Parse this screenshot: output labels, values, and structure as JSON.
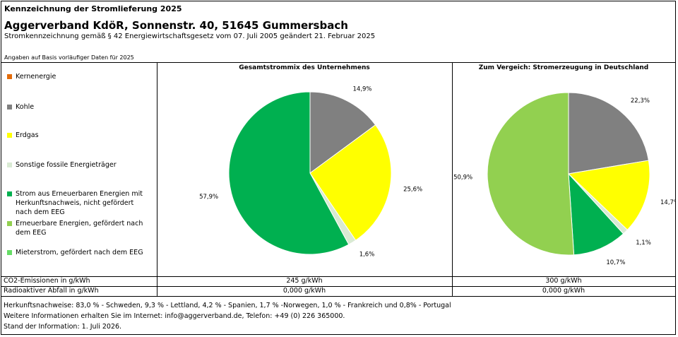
{
  "header": {
    "small_title": "Kennzeichnung der Stromlieferung 2025",
    "company": "Aggerverband KdöR, Sonnenstr. 40, 51645 Gummersbach",
    "subtitle": "Stromkennzeichnung gemäß § 42 Energiewirtschaftsgesetz vom 07. Juli 2005 geändert 21. Februar 2025",
    "note": "Angaben auf Basis vorläufiger Daten für 2025"
  },
  "legend": [
    {
      "label": "Kernenergie",
      "color": "#e46c0a"
    },
    {
      "label": "Kohle",
      "color": "#808080"
    },
    {
      "label": "Erdgas",
      "color": "#ffff00"
    },
    {
      "label": "Sonstige fossile Energieträger",
      "color": "#d9ead3"
    },
    {
      "label": "Strom aus Erneuerbaren Energien mit Herkunftsnachweis, nicht gefördert nach dem EEG",
      "color": "#00b050"
    },
    {
      "label": "Erneuerbare Energien, gefördert nach dem EEG",
      "color": "#92d050"
    },
    {
      "label": "Mieterstrom, gefördert nach dem EEG",
      "color": "#66dd66"
    }
  ],
  "chart_data": [
    {
      "type": "pie",
      "title": "Gesamtstrommix des Unternehmens",
      "slices": [
        {
          "name": "Kohle",
          "value": 14.9,
          "label": "14,9%",
          "color": "#808080"
        },
        {
          "name": "Erdgas",
          "value": 25.6,
          "label": "25,6%",
          "color": "#ffff00"
        },
        {
          "name": "Sonstige fossile Energieträger",
          "value": 1.6,
          "label": "1,6%",
          "color": "#d9ead3"
        },
        {
          "name": "Strom aus Erneuerbaren Energien mit Herkunftsnachweis, nicht gefördert nach dem EEG",
          "value": 57.9,
          "label": "57,9%",
          "color": "#00b050"
        }
      ]
    },
    {
      "type": "pie",
      "title": "Zum Vergeich: Stromerzeugung in Deutschland",
      "slices": [
        {
          "name": "Kohle",
          "value": 22.3,
          "label": "22,3%",
          "color": "#808080"
        },
        {
          "name": "Erdgas",
          "value": 14.7,
          "label": "14,7%",
          "color": "#ffff00"
        },
        {
          "name": "Sonstige fossile Energieträger",
          "value": 1.1,
          "label": "1,1%",
          "color": "#d9ead3"
        },
        {
          "name": "Strom aus Erneuerbaren Energien mit Herkunftsnachweis, nicht gefördert nach dem EEG",
          "value": 10.7,
          "label": "10,7%",
          "color": "#00b050"
        },
        {
          "name": "Erneuerbare Energien, gefördert nach dem EEG",
          "value": 50.9,
          "label": "50,9%",
          "color": "#92d050"
        }
      ]
    }
  ],
  "table": {
    "co2_label": "CO2-Emissionen in g/kWh",
    "co2_company": "245 g/kWh",
    "co2_germany": "300 g/kWh",
    "waste_label": "Radioaktiver Abfall in g/kWh",
    "waste_company": "0,000 g/kWh",
    "waste_germany": "0,000 g/kWh"
  },
  "footer": {
    "line1": "Herkunftsnachweise: 83,0 % - Schweden, 9,3 % - Lettland, 4,2 % - Spanien, 1,7 % -Norwegen, 1,0 % - Frankreich und 0,8% - Portugal",
    "line2": "Weitere Informationen erhalten Sie im Internet: info@aggerverband.de, Telefon: +49 (0) 226 365000.",
    "line3": "Stand der Information: 1. Juli 2026."
  }
}
